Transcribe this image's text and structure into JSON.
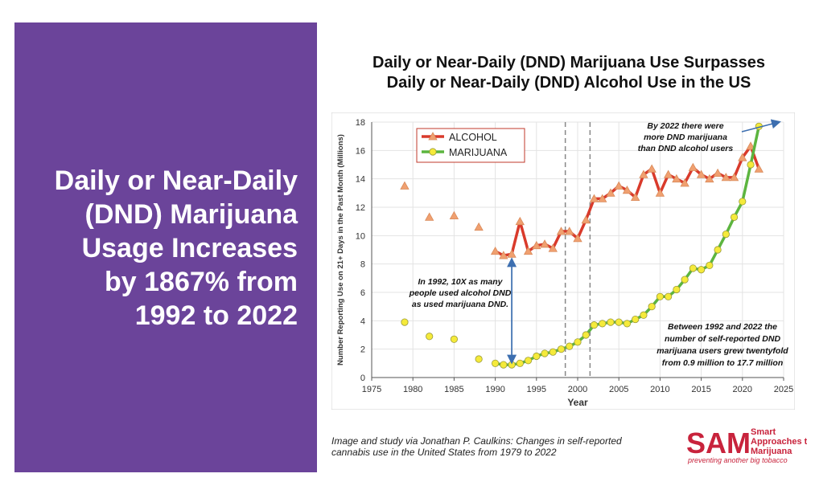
{
  "headline": {
    "lines": [
      "Daily or Near-Daily",
      "(DND) Marijuana",
      "Usage Increases",
      "by 1867% from",
      "1992 to 2022"
    ],
    "bg_color": "#6b449a"
  },
  "title": {
    "line1": "Daily or Near-Daily (DND) Marijuana Use Surpasses",
    "line2": "Daily or Near-Daily (DND) Alcohol Use in the US"
  },
  "caption": {
    "line1": "Image and study via Jonathan P. Caulkins: Changes in self-reported",
    "line2": "cannabis use in the United States from 1979 to 2022"
  },
  "logo": {
    "mark": "SAM",
    "name_lines": [
      "Smart",
      "Approaches to",
      "Marijuana"
    ],
    "tagline": "preventing another big tobacco",
    "color": "#c8233c"
  },
  "chart_data": {
    "type": "line",
    "xlabel": "Year",
    "ylabel": "Number Reporting Use on 21+ Days in the Past Month (Millions)",
    "xlim": [
      1975,
      2025
    ],
    "ylim": [
      0,
      18
    ],
    "xticks": [
      1975,
      1980,
      1985,
      1990,
      1995,
      2000,
      2005,
      2010,
      2015,
      2020,
      2025
    ],
    "yticks": [
      0,
      2,
      4,
      6,
      8,
      10,
      12,
      14,
      16,
      18
    ],
    "grid": true,
    "legend_position": "top-left",
    "vlines": [
      1998.5,
      2001.5
    ],
    "series": [
      {
        "name": "ALCOHOL",
        "color": "#d93a2b",
        "marker": "triangle",
        "marker_color": "#f0a070",
        "early_points": [
          [
            1979,
            13.5
          ],
          [
            1982,
            11.3
          ],
          [
            1985,
            11.4
          ],
          [
            1988,
            10.6
          ]
        ],
        "points": [
          [
            1990,
            8.9
          ],
          [
            1991,
            8.6
          ],
          [
            1992,
            8.7
          ],
          [
            1993,
            11.0
          ],
          [
            1994,
            8.9
          ],
          [
            1995,
            9.3
          ],
          [
            1996,
            9.4
          ],
          [
            1997,
            9.1
          ],
          [
            1998,
            10.3
          ],
          [
            1999,
            10.3
          ],
          [
            2000,
            9.8
          ],
          [
            2001,
            11.1
          ],
          [
            2002,
            12.6
          ],
          [
            2003,
            12.6
          ],
          [
            2004,
            13.0
          ],
          [
            2005,
            13.5
          ],
          [
            2006,
            13.2
          ],
          [
            2007,
            12.7
          ],
          [
            2008,
            14.3
          ],
          [
            2009,
            14.7
          ],
          [
            2010,
            13.0
          ],
          [
            2011,
            14.3
          ],
          [
            2012,
            14.0
          ],
          [
            2013,
            13.7
          ],
          [
            2014,
            14.8
          ],
          [
            2015,
            14.3
          ],
          [
            2016,
            14.0
          ],
          [
            2017,
            14.4
          ],
          [
            2018,
            14.1
          ],
          [
            2019,
            14.1
          ],
          [
            2020,
            15.5
          ],
          [
            2021,
            16.3
          ],
          [
            2022,
            14.7
          ]
        ]
      },
      {
        "name": "MARIJUANA",
        "color": "#5cb53f",
        "marker": "circle",
        "marker_color": "#f5ea3a",
        "early_points": [
          [
            1979,
            3.9
          ],
          [
            1982,
            2.9
          ],
          [
            1985,
            2.7
          ],
          [
            1988,
            1.3
          ]
        ],
        "points": [
          [
            1990,
            1.0
          ],
          [
            1991,
            0.9
          ],
          [
            1992,
            0.9
          ],
          [
            1993,
            1.0
          ],
          [
            1994,
            1.2
          ],
          [
            1995,
            1.5
          ],
          [
            1996,
            1.7
          ],
          [
            1997,
            1.8
          ],
          [
            1998,
            2.0
          ],
          [
            1999,
            2.2
          ],
          [
            2000,
            2.5
          ],
          [
            2001,
            3.0
          ],
          [
            2002,
            3.7
          ],
          [
            2003,
            3.8
          ],
          [
            2004,
            3.9
          ],
          [
            2005,
            3.9
          ],
          [
            2006,
            3.8
          ],
          [
            2007,
            4.1
          ],
          [
            2008,
            4.4
          ],
          [
            2009,
            5.0
          ],
          [
            2010,
            5.7
          ],
          [
            2011,
            5.7
          ],
          [
            2012,
            6.2
          ],
          [
            2013,
            6.9
          ],
          [
            2014,
            7.7
          ],
          [
            2015,
            7.6
          ],
          [
            2016,
            7.9
          ],
          [
            2017,
            9.0
          ],
          [
            2018,
            10.1
          ],
          [
            2019,
            11.3
          ],
          [
            2020,
            12.4
          ],
          [
            2021,
            15.0
          ],
          [
            2022,
            17.7
          ]
        ]
      }
    ],
    "annotations": [
      {
        "lines": [
          "By 2022  there were",
          "more DND marijuana",
          "than DND alcohol users"
        ]
      },
      {
        "lines": [
          "In 1992, 10X as many",
          "people used alcohol DND",
          "as used marijuana DND."
        ]
      },
      {
        "lines": [
          "Between 1992 and 2022 the",
          "number of self-reported DND",
          "marijuana users grew twentyfold",
          "from 0.9 million to 17.7 million"
        ]
      }
    ]
  }
}
